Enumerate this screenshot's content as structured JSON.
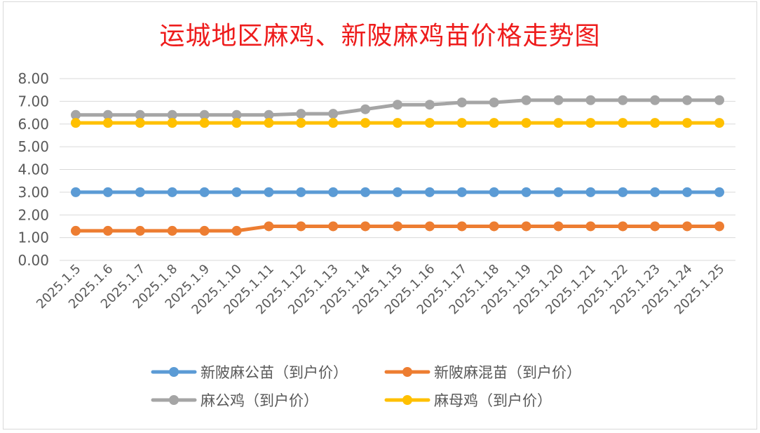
{
  "chart_data": {
    "type": "line",
    "title": "运城地区麻鸡、新陂麻鸡苗价格走势图",
    "xlabel": "",
    "ylabel": "",
    "ylim": [
      0,
      8
    ],
    "yticks": [
      "0.00",
      "1.00",
      "2.00",
      "3.00",
      "4.00",
      "5.00",
      "6.00",
      "7.00",
      "8.00"
    ],
    "grid": true,
    "legend_position": "bottom",
    "categories": [
      "2025.1.5",
      "2025.1.6",
      "2025.1.7",
      "2025.1.8",
      "2025.1.9",
      "2025.1.10",
      "2025.1.11",
      "2025.1.12",
      "2025.1.13",
      "2025.1.14",
      "2025.1.15",
      "2025.1.16",
      "2025.1.17",
      "2025.1.18",
      "2025.1.19",
      "2025.1.20",
      "2025.1.21",
      "2025.1.22",
      "2025.1.23",
      "2025.1.24",
      "2025.1.25"
    ],
    "series": [
      {
        "name": "新陂麻公苗（到户价）",
        "color": "#5b9bd5",
        "values": [
          3,
          3,
          3,
          3,
          3,
          3,
          3,
          3,
          3,
          3,
          3,
          3,
          3,
          3,
          3,
          3,
          3,
          3,
          3,
          3,
          3
        ]
      },
      {
        "name": "新陂麻混苗（到户价）",
        "color": "#ed7d31",
        "values": [
          1.3,
          1.3,
          1.3,
          1.3,
          1.3,
          1.3,
          1.5,
          1.5,
          1.5,
          1.5,
          1.5,
          1.5,
          1.5,
          1.5,
          1.5,
          1.5,
          1.5,
          1.5,
          1.5,
          1.5,
          1.5
        ]
      },
      {
        "name": "麻公鸡（到户价）",
        "color": "#a5a5a5",
        "values": [
          6.4,
          6.4,
          6.4,
          6.4,
          6.4,
          6.4,
          6.4,
          6.45,
          6.45,
          6.65,
          6.85,
          6.85,
          6.95,
          6.95,
          7.05,
          7.05,
          7.05,
          7.05,
          7.05,
          7.05,
          7.05
        ]
      },
      {
        "name": "麻母鸡（到户价）",
        "color": "#ffc000",
        "values": [
          6.05,
          6.05,
          6.05,
          6.05,
          6.05,
          6.05,
          6.05,
          6.05,
          6.05,
          6.05,
          6.05,
          6.05,
          6.05,
          6.05,
          6.05,
          6.05,
          6.05,
          6.05,
          6.05,
          6.05,
          6.05
        ]
      }
    ]
  }
}
